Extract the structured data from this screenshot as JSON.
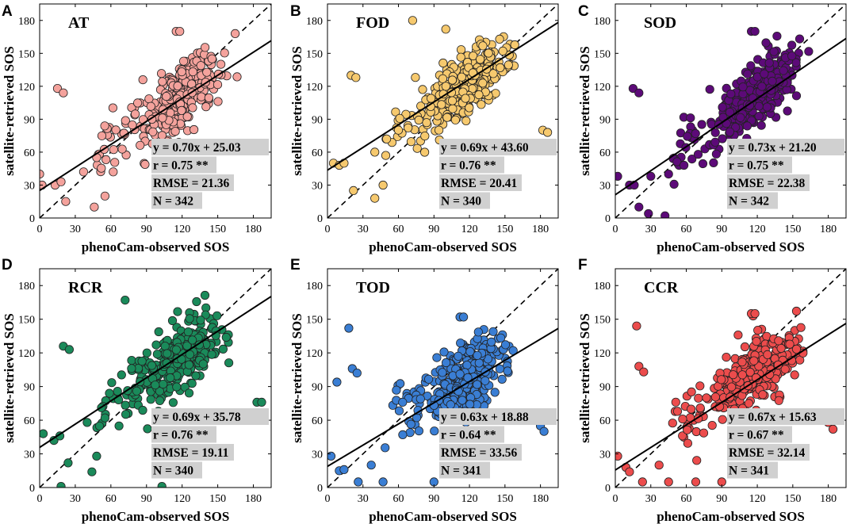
{
  "chart_data": [
    {
      "type": "scatter",
      "label": "A",
      "title": "AT",
      "color": "#f4a29c",
      "xlabel": "phenoCam-observed SOS",
      "ylabel": "satellite-retrieved SOS",
      "xlim": [
        0,
        195
      ],
      "ylim": [
        0,
        195
      ],
      "xticks": [
        "0",
        "30",
        "60",
        "90",
        "120",
        "150",
        "180"
      ],
      "yticks": [
        "0",
        "30",
        "60",
        "90",
        "120",
        "150",
        "180"
      ],
      "fit": {
        "slope": 0.7,
        "intercept": 25.03
      },
      "stats": [
        "y = 0.70x + 25.03",
        "r = 0.75 **",
        "RMSE = 21.36",
        "N = 342"
      ],
      "n": 342,
      "notable_points": [
        [
          0,
          40
        ],
        [
          2,
          30
        ],
        [
          13,
          30
        ],
        [
          18,
          33
        ],
        [
          15,
          118
        ],
        [
          20,
          114
        ],
        [
          115,
          170
        ],
        [
          118,
          170
        ],
        [
          183,
          66
        ],
        [
          55,
          20
        ],
        [
          46,
          10
        ],
        [
          22,
          15
        ],
        [
          37,
          42
        ],
        [
          48,
          55
        ],
        [
          62,
          42
        ]
      ]
    },
    {
      "type": "scatter",
      "label": "B",
      "title": "FOD",
      "color": "#f6c96e",
      "xlabel": "phenoCam-observed SOS",
      "ylabel": "satellite-retrieved SOS",
      "xlim": [
        0,
        195
      ],
      "ylim": [
        0,
        195
      ],
      "xticks": [
        "0",
        "30",
        "60",
        "90",
        "120",
        "150",
        "180"
      ],
      "yticks": [
        "0",
        "30",
        "60",
        "90",
        "120",
        "150",
        "180"
      ],
      "fit": {
        "slope": 0.69,
        "intercept": 43.6
      },
      "stats": [
        "y = 0.69x + 43.60",
        "r = 0.76 **",
        "RMSE = 20.41",
        "N = 340"
      ],
      "n": 340,
      "notable_points": [
        [
          5,
          50
        ],
        [
          10,
          48
        ],
        [
          14,
          50
        ],
        [
          20,
          130
        ],
        [
          24,
          128
        ],
        [
          22,
          25
        ],
        [
          40,
          18
        ],
        [
          47,
          30
        ],
        [
          72,
          180
        ],
        [
          100,
          172
        ],
        [
          182,
          80
        ],
        [
          186,
          78
        ],
        [
          40,
          60
        ],
        [
          50,
          72
        ],
        [
          60,
          80
        ]
      ]
    },
    {
      "type": "scatter",
      "label": "C",
      "title": "SOD",
      "color": "#5c0a78",
      "xlabel": "phenoCam-observed SOS",
      "ylabel": "satellite-retrieved SOS",
      "xlim": [
        0,
        195
      ],
      "ylim": [
        0,
        195
      ],
      "xticks": [
        "0",
        "30",
        "60",
        "90",
        "120",
        "150",
        "180"
      ],
      "yticks": [
        "0",
        "30",
        "60",
        "90",
        "120",
        "150",
        "180"
      ],
      "fit": {
        "slope": 0.73,
        "intercept": 21.2
      },
      "stats": [
        "y = 0.73x + 21.20",
        "r = 0.75 **",
        "RMSE = 22.38",
        "N = 342"
      ],
      "n": 342,
      "notable_points": [
        [
          2,
          38
        ],
        [
          12,
          30
        ],
        [
          16,
          30
        ],
        [
          15,
          118
        ],
        [
          20,
          114
        ],
        [
          115,
          170
        ],
        [
          118,
          170
        ],
        [
          183,
          65
        ],
        [
          20,
          10
        ],
        [
          28,
          4
        ],
        [
          42,
          2
        ],
        [
          30,
          38
        ],
        [
          45,
          40
        ],
        [
          58,
          48
        ],
        [
          70,
          58
        ]
      ]
    },
    {
      "type": "scatter",
      "label": "D",
      "title": "RCR",
      "color": "#1a8a5a",
      "xlabel": "phenoCam-observed SOS",
      "ylabel": "satellite-retrieved SOS",
      "xlim": [
        0,
        195
      ],
      "ylim": [
        0,
        195
      ],
      "xticks": [
        "0",
        "30",
        "60",
        "90",
        "120",
        "150",
        "180"
      ],
      "yticks": [
        "0",
        "30",
        "60",
        "90",
        "120",
        "150",
        "180"
      ],
      "fit": {
        "slope": 0.69,
        "intercept": 35.78
      },
      "stats": [
        "y = 0.69x + 35.78",
        "r = 0.76 **",
        "RMSE = 19.11",
        "N = 340"
      ],
      "n": 340,
      "notable_points": [
        [
          3,
          48
        ],
        [
          12,
          42
        ],
        [
          17,
          46
        ],
        [
          20,
          126
        ],
        [
          25,
          123
        ],
        [
          24,
          22
        ],
        [
          18,
          1
        ],
        [
          44,
          14
        ],
        [
          48,
          28
        ],
        [
          72,
          167
        ],
        [
          103,
          1
        ],
        [
          183,
          76
        ],
        [
          187,
          76
        ],
        [
          40,
          58
        ],
        [
          55,
          62
        ]
      ]
    },
    {
      "type": "scatter",
      "label": "E",
      "title": "TOD",
      "color": "#3a7ed4",
      "xlabel": "phenoCam-observed SOS",
      "ylabel": "satellite-retrieved SOS",
      "xlim": [
        0,
        195
      ],
      "ylim": [
        0,
        195
      ],
      "xticks": [
        "0",
        "30",
        "60",
        "90",
        "120",
        "150",
        "180"
      ],
      "yticks": [
        "0",
        "30",
        "60",
        "90",
        "120",
        "150",
        "180"
      ],
      "fit": {
        "slope": 0.63,
        "intercept": 18.88
      },
      "stats": [
        "y = 0.63x + 18.88",
        "r = 0.64 **",
        "RMSE = 33.56",
        "N = 341"
      ],
      "n": 341,
      "notable_points": [
        [
          3,
          28
        ],
        [
          10,
          15
        ],
        [
          14,
          16
        ],
        [
          18,
          142
        ],
        [
          21,
          106
        ],
        [
          25,
          102
        ],
        [
          8,
          94
        ],
        [
          26,
          5
        ],
        [
          37,
          20
        ],
        [
          47,
          5
        ],
        [
          90,
          5
        ],
        [
          112,
          152
        ],
        [
          115,
          152
        ],
        [
          180,
          55
        ],
        [
          183,
          50
        ]
      ]
    },
    {
      "type": "scatter",
      "label": "F",
      "title": "CCR",
      "color": "#ec4c4c",
      "xlabel": "phenoCam-observed SOS",
      "ylabel": "satellite-retrieved SOS",
      "xlim": [
        0,
        195
      ],
      "ylim": [
        0,
        195
      ],
      "xticks": [
        "0",
        "30",
        "60",
        "90",
        "120",
        "150",
        "180"
      ],
      "yticks": [
        "0",
        "30",
        "60",
        "90",
        "120",
        "150",
        "180"
      ],
      "fit": {
        "slope": 0.67,
        "intercept": 15.63
      },
      "stats": [
        "y = 0.67x + 15.63",
        "r = 0.67 **",
        "RMSE = 32.14",
        "N = 341"
      ],
      "n": 341,
      "notable_points": [
        [
          2,
          28
        ],
        [
          9,
          18
        ],
        [
          12,
          14
        ],
        [
          18,
          144
        ],
        [
          20,
          108
        ],
        [
          24,
          103
        ],
        [
          23,
          5
        ],
        [
          45,
          5
        ],
        [
          68,
          5
        ],
        [
          90,
          5
        ],
        [
          115,
          155
        ],
        [
          118,
          155
        ],
        [
          180,
          58
        ],
        [
          184,
          52
        ],
        [
          37,
          20
        ]
      ]
    }
  ]
}
